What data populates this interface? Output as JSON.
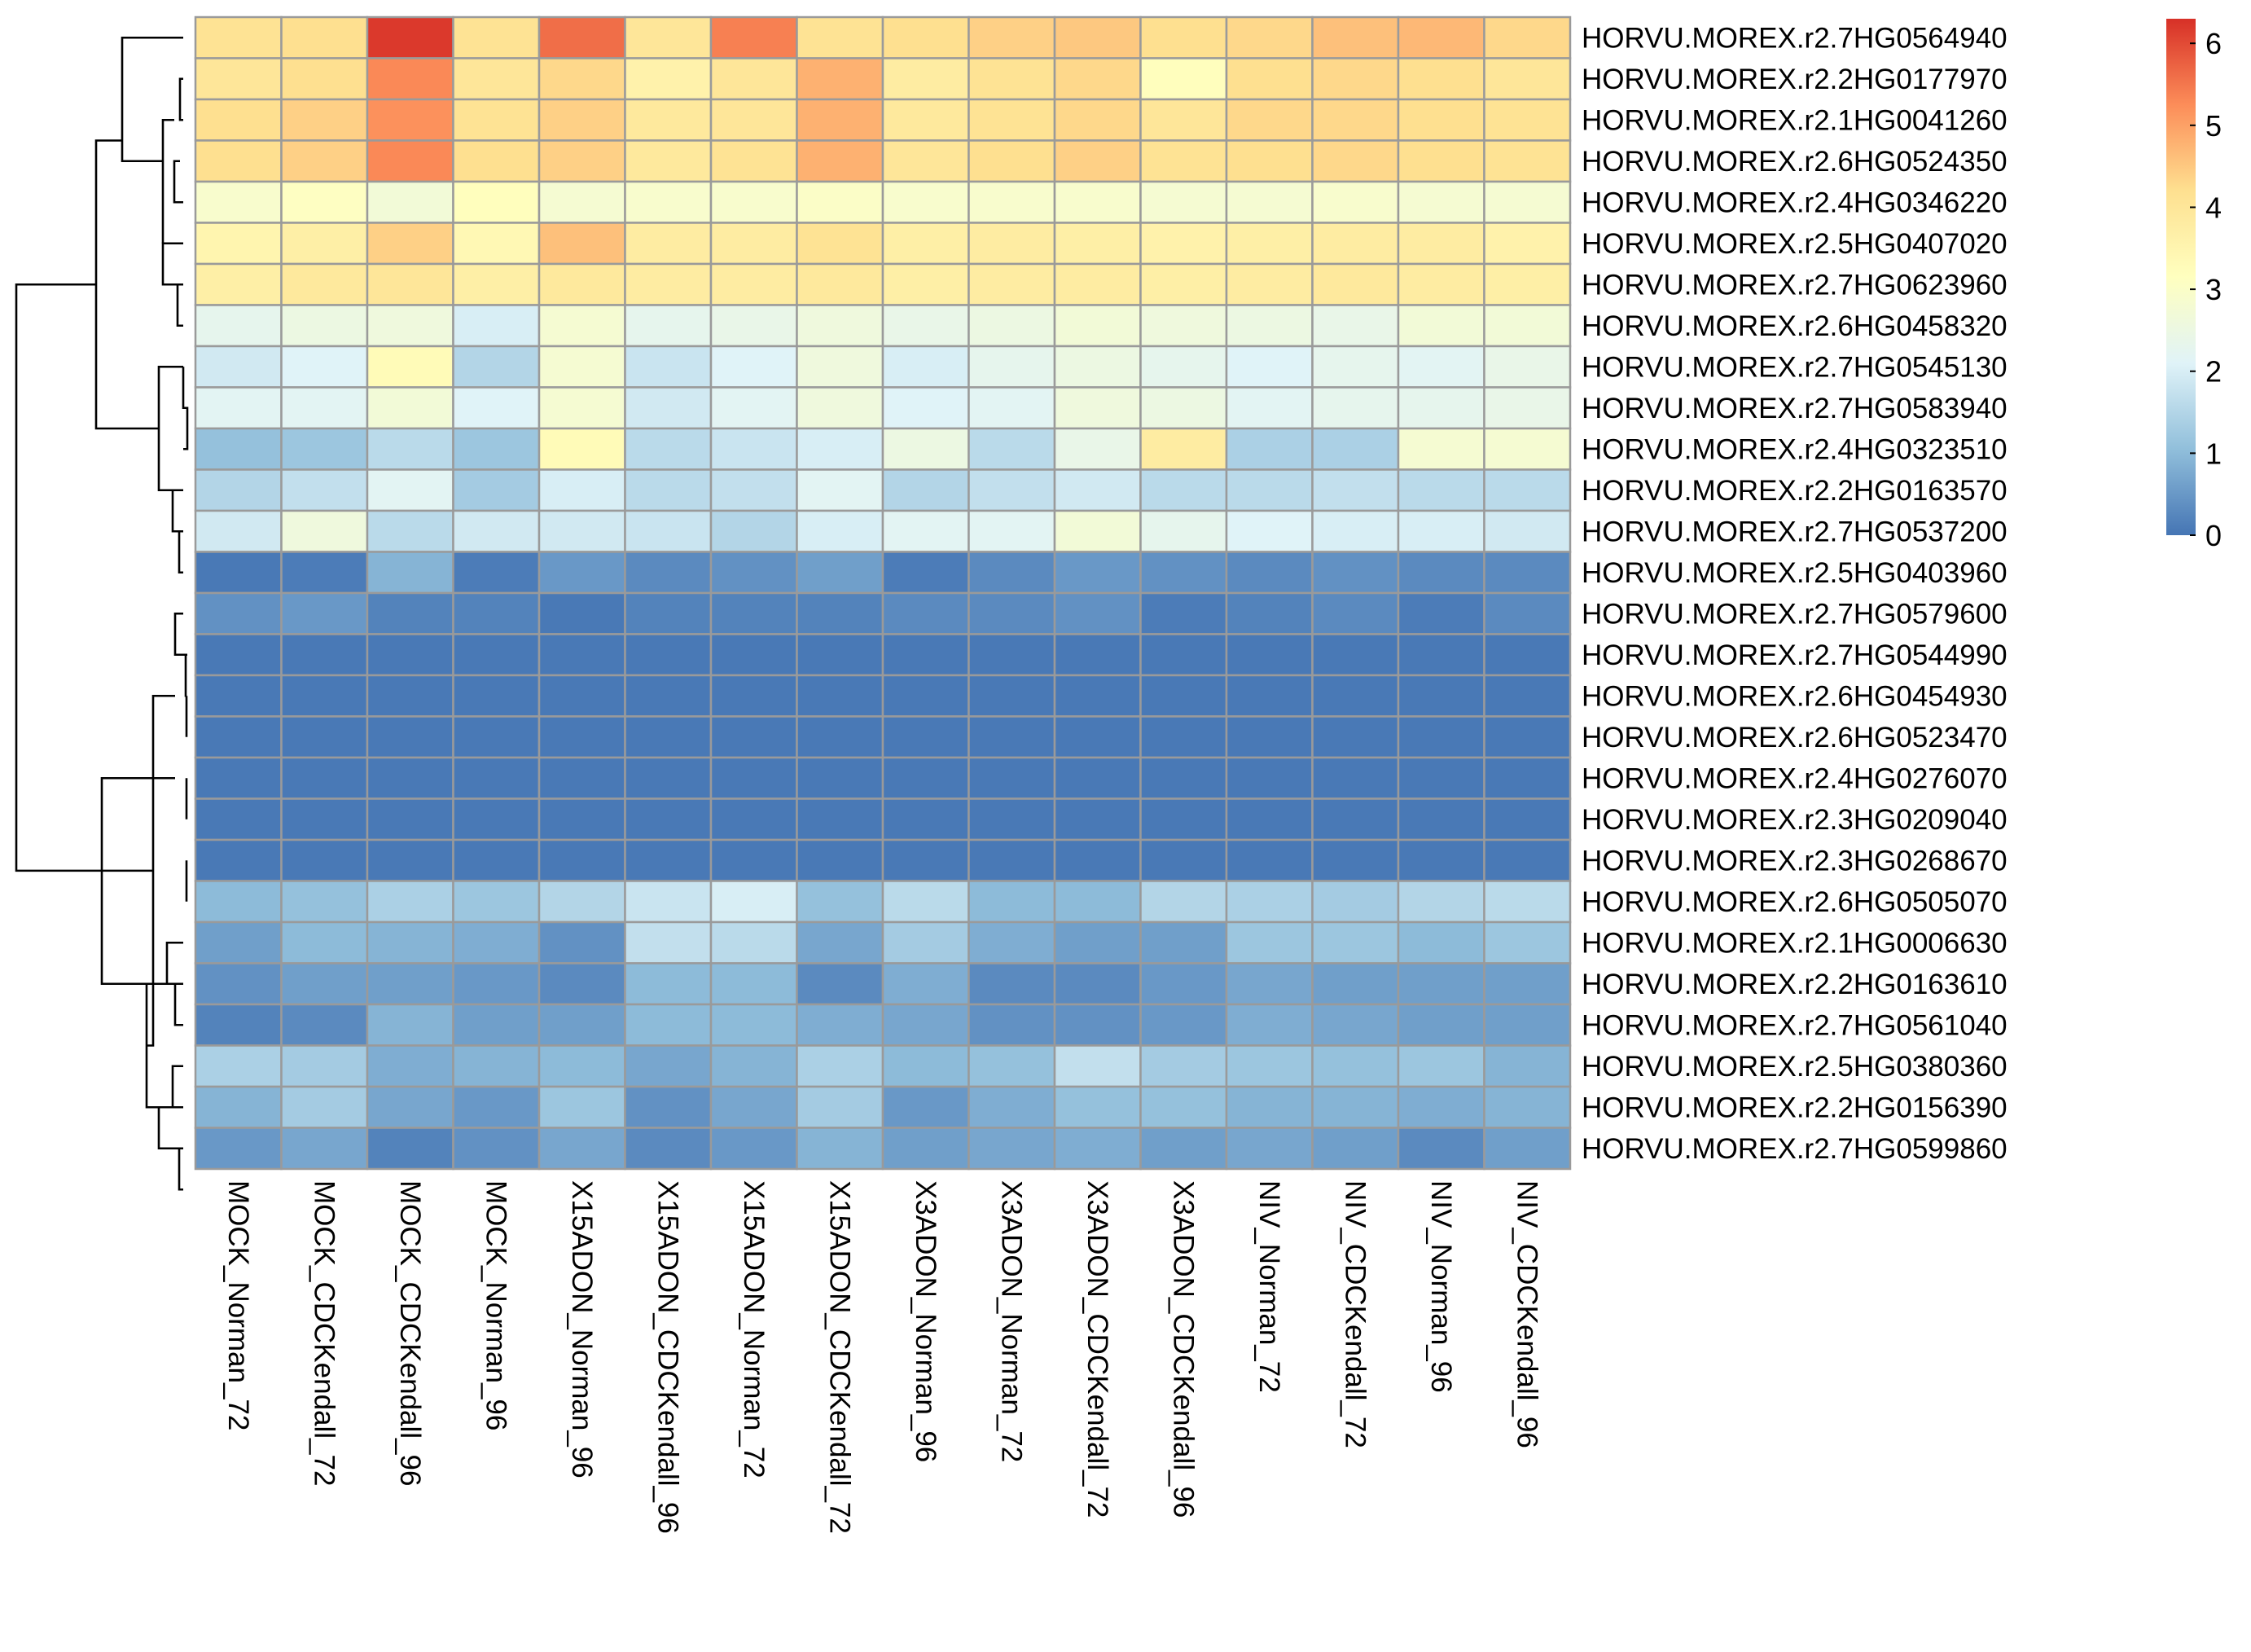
{
  "chart_data": {
    "type": "heatmap",
    "title": "",
    "rows": [
      "HORVU.MOREX.r2.7HG0564940",
      "HORVU.MOREX.r2.2HG0177970",
      "HORVU.MOREX.r2.1HG0041260",
      "HORVU.MOREX.r2.6HG0524350",
      "HORVU.MOREX.r2.4HG0346220",
      "HORVU.MOREX.r2.5HG0407020",
      "HORVU.MOREX.r2.7HG0623960",
      "HORVU.MOREX.r2.6HG0458320",
      "HORVU.MOREX.r2.7HG0545130",
      "HORVU.MOREX.r2.7HG0583940",
      "HORVU.MOREX.r2.4HG0323510",
      "HORVU.MOREX.r2.2HG0163570",
      "HORVU.MOREX.r2.7HG0537200",
      "HORVU.MOREX.r2.5HG0403960",
      "HORVU.MOREX.r2.7HG0579600",
      "HORVU.MOREX.r2.7HG0544990",
      "HORVU.MOREX.r2.6HG0454930",
      "HORVU.MOREX.r2.6HG0523470",
      "HORVU.MOREX.r2.4HG0276070",
      "HORVU.MOREX.r2.3HG0209040",
      "HORVU.MOREX.r2.3HG0268670",
      "HORVU.MOREX.r2.6HG0505070",
      "HORVU.MOREX.r2.1HG0006630",
      "HORVU.MOREX.r2.2HG0163610",
      "HORVU.MOREX.r2.7HG0561040",
      "HORVU.MOREX.r2.5HG0380360",
      "HORVU.MOREX.r2.2HG0156390",
      "HORVU.MOREX.r2.7HG0599860"
    ],
    "columns": [
      "MOCK_Norman_72",
      "MOCK_CDCKendall_72",
      "MOCK_CDCKendall_96",
      "MOCK_Norman_96",
      "X15ADON_Norman_96",
      "X15ADON_CDCKendall_96",
      "X15ADON_Norman_72",
      "X15ADON_CDCKendall_72",
      "X3ADON_Norman_96",
      "X3ADON_Norman_72",
      "X3ADON_CDCKendall_72",
      "X3ADON_CDCKendall_96",
      "NIV_Norman_72",
      "NIV_CDCKendall_72",
      "NIV_Norman_96",
      "NIV_CDCKendall_96"
    ],
    "values": [
      [
        4.1,
        4.2,
        6.2,
        4.1,
        5.6,
        4.0,
        5.4,
        4.1,
        4.2,
        4.4,
        4.5,
        4.2,
        4.3,
        4.6,
        4.7,
        4.3
      ],
      [
        4.0,
        4.2,
        5.3,
        4.0,
        4.3,
        3.6,
        4.0,
        4.8,
        3.8,
        4.1,
        4.3,
        3.2,
        4.2,
        4.3,
        4.2,
        4.0
      ],
      [
        4.2,
        4.4,
        5.2,
        4.1,
        4.4,
        3.9,
        4.0,
        4.8,
        3.9,
        4.1,
        4.3,
        4.0,
        4.3,
        4.3,
        4.2,
        4.1
      ],
      [
        4.2,
        4.4,
        5.3,
        4.2,
        4.4,
        3.9,
        4.1,
        4.8,
        4.0,
        4.2,
        4.4,
        4.1,
        4.2,
        4.3,
        4.2,
        4.1
      ],
      [
        2.9,
        3.1,
        2.7,
        3.2,
        2.8,
        2.9,
        2.9,
        3.0,
        2.9,
        2.9,
        2.9,
        2.8,
        2.8,
        2.9,
        2.8,
        2.8
      ],
      [
        3.5,
        3.7,
        4.4,
        3.4,
        4.6,
        3.8,
        3.8,
        4.1,
        3.7,
        3.8,
        3.7,
        3.6,
        3.7,
        3.8,
        3.8,
        3.6
      ],
      [
        3.7,
        3.9,
        4.0,
        3.7,
        3.9,
        3.8,
        3.8,
        3.9,
        3.7,
        3.8,
        3.8,
        3.7,
        3.8,
        3.9,
        3.8,
        3.7
      ],
      [
        2.3,
        2.5,
        2.6,
        2.0,
        2.8,
        2.3,
        2.4,
        2.6,
        2.4,
        2.5,
        2.7,
        2.6,
        2.5,
        2.4,
        2.7,
        2.7
      ],
      [
        1.9,
        2.1,
        3.3,
        1.5,
        2.8,
        1.8,
        2.1,
        2.6,
        2.0,
        2.3,
        2.5,
        2.3,
        2.1,
        2.3,
        2.2,
        2.4
      ],
      [
        2.2,
        2.2,
        2.7,
        2.1,
        2.8,
        1.9,
        2.2,
        2.6,
        2.1,
        2.2,
        2.6,
        2.5,
        2.2,
        2.3,
        2.3,
        2.4
      ],
      [
        1.1,
        1.2,
        1.6,
        1.2,
        3.3,
        1.6,
        1.8,
        2.0,
        2.5,
        1.6,
        2.4,
        3.8,
        1.4,
        1.4,
        2.8,
        2.8
      ],
      [
        1.5,
        1.7,
        2.2,
        1.3,
        2.0,
        1.6,
        1.7,
        2.2,
        1.5,
        1.7,
        1.9,
        1.6,
        1.6,
        1.7,
        1.6,
        1.6
      ],
      [
        1.9,
        2.6,
        1.6,
        1.9,
        1.9,
        1.8,
        1.5,
        2.0,
        2.2,
        2.2,
        2.7,
        2.3,
        2.1,
        2.0,
        2.0,
        1.9
      ],
      [
        0.05,
        0.1,
        0.9,
        0.1,
        0.5,
        0.3,
        0.4,
        0.6,
        0.1,
        0.3,
        0.5,
        0.4,
        0.3,
        0.4,
        0.3,
        0.3
      ],
      [
        0.4,
        0.5,
        0.2,
        0.2,
        0.05,
        0.2,
        0.2,
        0.2,
        0.3,
        0.3,
        0.4,
        0.1,
        0.2,
        0.3,
        0.1,
        0.3
      ],
      [
        0.05,
        0.05,
        0.05,
        0.05,
        0.05,
        0.05,
        0.05,
        0.05,
        0.05,
        0.05,
        0.05,
        0.05,
        0.05,
        0.05,
        0.05,
        0.05
      ],
      [
        0.05,
        0.05,
        0.05,
        0.05,
        0.05,
        0.05,
        0.05,
        0.05,
        0.05,
        0.05,
        0.05,
        0.05,
        0.05,
        0.05,
        0.05,
        0.05
      ],
      [
        0.05,
        0.05,
        0.05,
        0.05,
        0.05,
        0.05,
        0.05,
        0.05,
        0.05,
        0.05,
        0.05,
        0.05,
        0.05,
        0.05,
        0.05,
        0.05
      ],
      [
        0.05,
        0.05,
        0.05,
        0.05,
        0.05,
        0.05,
        0.05,
        0.05,
        0.05,
        0.05,
        0.05,
        0.05,
        0.05,
        0.05,
        0.05,
        0.05
      ],
      [
        0.05,
        0.05,
        0.05,
        0.05,
        0.05,
        0.05,
        0.05,
        0.05,
        0.05,
        0.05,
        0.05,
        0.05,
        0.05,
        0.05,
        0.05,
        0.05
      ],
      [
        0.05,
        0.05,
        0.05,
        0.05,
        0.05,
        0.05,
        0.05,
        0.05,
        0.05,
        0.05,
        0.05,
        0.05,
        0.05,
        0.05,
        0.05,
        0.05
      ],
      [
        1.0,
        1.1,
        1.4,
        1.2,
        1.5,
        1.8,
        2.0,
        1.1,
        1.6,
        1.0,
        1.0,
        1.5,
        1.4,
        1.3,
        1.5,
        1.6
      ],
      [
        0.6,
        1.0,
        0.9,
        0.8,
        0.4,
        1.7,
        1.6,
        0.7,
        1.3,
        0.8,
        0.6,
        0.6,
        1.2,
        1.2,
        1.0,
        1.2
      ],
      [
        0.4,
        0.6,
        0.6,
        0.5,
        0.3,
        1.0,
        1.0,
        0.3,
        0.8,
        0.3,
        0.3,
        0.5,
        0.7,
        0.6,
        0.6,
        0.6
      ],
      [
        0.2,
        0.3,
        0.9,
        0.6,
        0.6,
        1.0,
        1.0,
        0.8,
        0.7,
        0.4,
        0.4,
        0.5,
        0.8,
        0.7,
        0.6,
        0.6
      ],
      [
        1.4,
        1.3,
        0.8,
        0.9,
        1.0,
        0.7,
        0.9,
        1.4,
        1.0,
        1.1,
        1.7,
        1.3,
        1.2,
        1.1,
        1.2,
        0.9
      ],
      [
        0.9,
        1.3,
        0.7,
        0.5,
        1.2,
        0.4,
        0.7,
        1.3,
        0.5,
        0.8,
        1.1,
        1.1,
        0.9,
        0.9,
        0.8,
        0.9
      ],
      [
        0.5,
        0.7,
        0.2,
        0.4,
        0.7,
        0.3,
        0.5,
        0.9,
        0.6,
        0.7,
        0.8,
        0.6,
        0.7,
        0.6,
        0.3,
        0.6
      ]
    ],
    "legend": {
      "min": 0,
      "max": 6.3,
      "ticks": [
        "0",
        "1",
        "2",
        "3",
        "4",
        "5",
        "6"
      ],
      "placement": "right"
    },
    "colors": {
      "scale": [
        "#4575b4",
        "#91bfdb",
        "#e0f3f8",
        "#ffffbf",
        "#fee090",
        "#fc8d59",
        "#d73027"
      ],
      "grid": "#9a9a9a",
      "text": "#000000"
    },
    "row_dendrogram": true,
    "xlabel": "",
    "ylabel": ""
  }
}
